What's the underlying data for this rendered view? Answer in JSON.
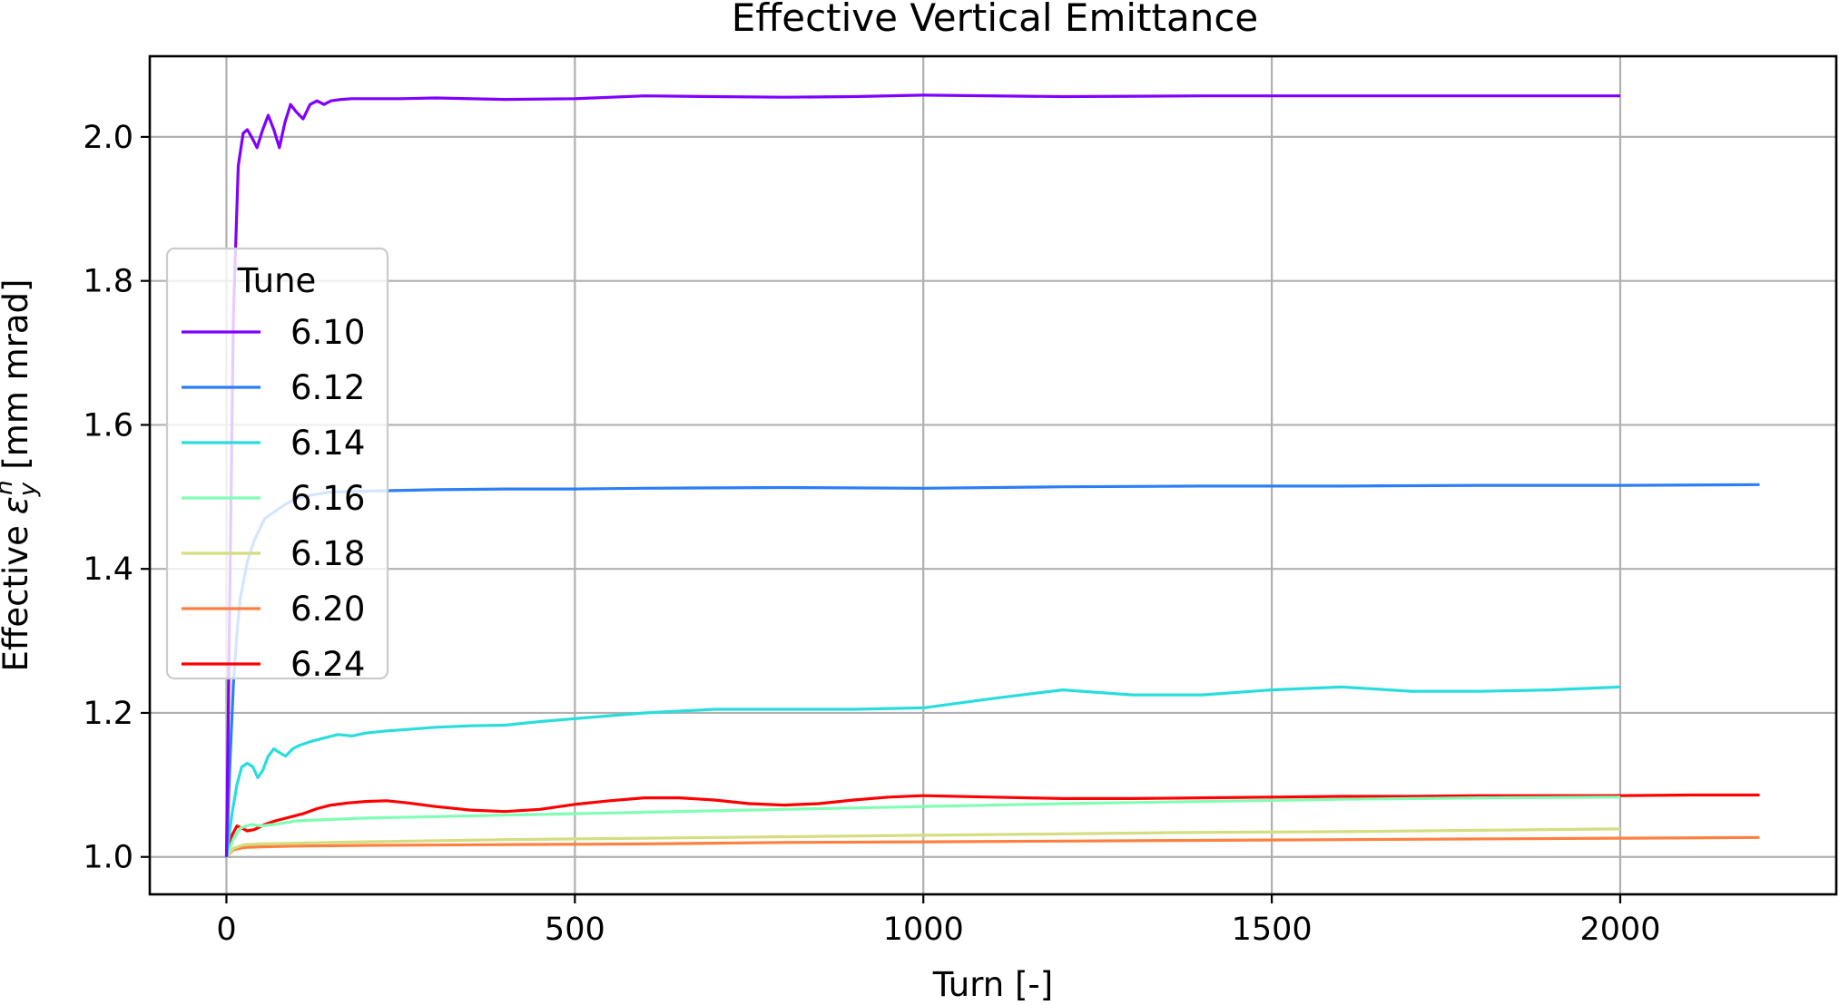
{
  "chart_data": {
    "type": "line",
    "title": "Effective Vertical Emittance",
    "xlabel": "Turn [-]",
    "ylabel": {
      "prefix": "Effective ",
      "symbol": "ε",
      "subscript": "y",
      "superscript": "n",
      "suffix": " [mm mrad]"
    },
    "xlim": [
      -110,
      2310
    ],
    "ylim": [
      0.948,
      2.112
    ],
    "xticks": [
      0,
      500,
      1000,
      1500,
      2000
    ],
    "yticks": [
      1.0,
      1.2,
      1.4,
      1.6,
      1.8,
      2.0
    ],
    "xtick_labels": [
      "0",
      "500",
      "1000",
      "1500",
      "2000"
    ],
    "ytick_labels": [
      "1.0",
      "1.2",
      "1.4",
      "1.6",
      "1.8",
      "2.0"
    ],
    "grid": true,
    "legend": {
      "title": "Tune",
      "placement": "center-left"
    },
    "series": [
      {
        "name": "6.10",
        "color": "#8000ff",
        "x": [
          0,
          10,
          17,
          24,
          30,
          36,
          44,
          52,
          60,
          68,
          76,
          84,
          92,
          100,
          110,
          120,
          130,
          140,
          150,
          165,
          180,
          200,
          250,
          300,
          400,
          500,
          600,
          700,
          800,
          900,
          1000,
          1200,
          1400,
          1600,
          1800,
          2000
        ],
        "y": [
          1.0,
          1.75,
          1.96,
          2.005,
          2.01,
          2.0,
          1.985,
          2.01,
          2.03,
          2.01,
          1.985,
          2.02,
          2.045,
          2.035,
          2.025,
          2.045,
          2.05,
          2.045,
          2.05,
          2.052,
          2.053,
          2.053,
          2.053,
          2.054,
          2.052,
          2.053,
          2.057,
          2.056,
          2.055,
          2.056,
          2.058,
          2.056,
          2.057,
          2.057,
          2.057,
          2.057
        ]
      },
      {
        "name": "6.12",
        "color": "#2c7ef7",
        "x": [
          0,
          5,
          10,
          15,
          20,
          30,
          40,
          55,
          70,
          85,
          100,
          125,
          150,
          200,
          300,
          400,
          500,
          600,
          800,
          1000,
          1200,
          1400,
          1600,
          1800,
          2000,
          2200
        ],
        "y": [
          1.0,
          1.13,
          1.24,
          1.31,
          1.36,
          1.41,
          1.44,
          1.47,
          1.48,
          1.49,
          1.498,
          1.503,
          1.507,
          1.508,
          1.51,
          1.511,
          1.511,
          1.512,
          1.513,
          1.512,
          1.514,
          1.515,
          1.515,
          1.516,
          1.516,
          1.517
        ]
      },
      {
        "name": "6.14",
        "color": "#2adddd",
        "x": [
          0,
          8,
          15,
          22,
          30,
          38,
          45,
          52,
          60,
          68,
          76,
          85,
          95,
          105,
          120,
          140,
          160,
          180,
          200,
          230,
          260,
          300,
          350,
          400,
          450,
          500,
          600,
          700,
          800,
          900,
          1000,
          1100,
          1200,
          1300,
          1400,
          1500,
          1600,
          1700,
          1800,
          1900,
          2000
        ],
        "y": [
          1.0,
          1.06,
          1.1,
          1.125,
          1.13,
          1.125,
          1.11,
          1.12,
          1.14,
          1.15,
          1.145,
          1.14,
          1.15,
          1.155,
          1.16,
          1.165,
          1.17,
          1.168,
          1.172,
          1.175,
          1.177,
          1.18,
          1.182,
          1.183,
          1.188,
          1.192,
          1.2,
          1.205,
          1.205,
          1.205,
          1.207,
          1.22,
          1.232,
          1.225,
          1.225,
          1.232,
          1.236,
          1.23,
          1.23,
          1.232,
          1.236
        ]
      },
      {
        "name": "6.16",
        "color": "#80ffb4",
        "x": [
          0,
          10,
          20,
          35,
          50,
          75,
          100,
          150,
          200,
          300,
          400,
          500,
          600,
          700,
          800,
          1000,
          1200,
          1400,
          1600,
          1800,
          2000
        ],
        "y": [
          1.0,
          1.025,
          1.04,
          1.045,
          1.043,
          1.046,
          1.05,
          1.052,
          1.054,
          1.056,
          1.058,
          1.06,
          1.062,
          1.064,
          1.066,
          1.07,
          1.074,
          1.077,
          1.08,
          1.082,
          1.083
        ]
      },
      {
        "name": "6.18",
        "color": "#d4dd80",
        "x": [
          0,
          10,
          25,
          50,
          100,
          200,
          400,
          600,
          800,
          1000,
          1200,
          1400,
          1600,
          1800,
          2000
        ],
        "y": [
          1.0,
          1.012,
          1.017,
          1.018,
          1.019,
          1.021,
          1.024,
          1.026,
          1.028,
          1.03,
          1.032,
          1.034,
          1.035,
          1.037,
          1.039
        ]
      },
      {
        "name": "6.20",
        "color": "#ff8040",
        "x": [
          0,
          10,
          25,
          50,
          100,
          200,
          400,
          600,
          800,
          1000,
          1200,
          1400,
          1600,
          1800,
          2000,
          2200
        ],
        "y": [
          1.0,
          1.01,
          1.013,
          1.014,
          1.015,
          1.016,
          1.017,
          1.018,
          1.02,
          1.021,
          1.022,
          1.023,
          1.024,
          1.025,
          1.026,
          1.027
        ]
      },
      {
        "name": "6.24",
        "color": "#ff0000",
        "x": [
          0,
          8,
          15,
          22,
          30,
          40,
          55,
          70,
          90,
          110,
          130,
          150,
          175,
          200,
          230,
          260,
          300,
          350,
          400,
          450,
          500,
          550,
          600,
          650,
          700,
          750,
          800,
          850,
          900,
          950,
          1000,
          1100,
          1200,
          1300,
          1400,
          1500,
          1600,
          1700,
          1800,
          1900,
          2000,
          2100,
          2200
        ],
        "y": [
          1.0,
          1.03,
          1.043,
          1.04,
          1.036,
          1.038,
          1.045,
          1.05,
          1.055,
          1.06,
          1.067,
          1.072,
          1.075,
          1.077,
          1.078,
          1.075,
          1.07,
          1.065,
          1.063,
          1.066,
          1.073,
          1.078,
          1.082,
          1.082,
          1.079,
          1.074,
          1.072,
          1.074,
          1.079,
          1.083,
          1.085,
          1.083,
          1.081,
          1.081,
          1.082,
          1.083,
          1.084,
          1.084,
          1.085,
          1.085,
          1.085,
          1.086,
          1.086
        ]
      }
    ]
  }
}
